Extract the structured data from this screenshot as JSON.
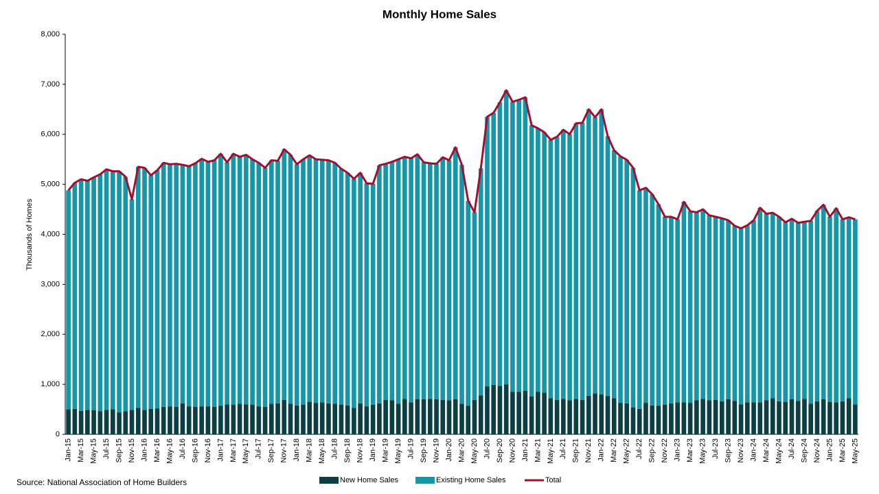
{
  "chart_data": {
    "type": "stacked_bar_line",
    "title": "Monthly Home Sales",
    "ylabel": "Thousands of Homes",
    "source": "Source: National Association of Home Builders",
    "categories": [
      "Jan-15",
      null,
      "Mar-15",
      null,
      "May-15",
      null,
      "Jul-15",
      null,
      "Sep-15",
      null,
      "Nov-15",
      null,
      "Jan-16",
      null,
      "Mar-16",
      null,
      "May-16",
      null,
      "Jul-16",
      null,
      "Sep-16",
      null,
      "Nov-16",
      null,
      "Jan-17",
      null,
      "Mar-17",
      null,
      "May-17",
      null,
      "Jul-17",
      null,
      "Sep-17",
      null,
      "Nov-17",
      null,
      "Jan-18",
      null,
      "Mar-18",
      null,
      "May-18",
      null,
      "Jul-18",
      null,
      "Sep-18",
      null,
      "Nov-18",
      null,
      "Jan-19",
      null,
      "Mar-19",
      null,
      "May-19",
      null,
      "Jul-19",
      null,
      "Sep-19",
      null,
      "Nov-19",
      null,
      "Jan-20",
      null,
      "Mar-20",
      null,
      "May-20",
      null,
      "Jul-20",
      null,
      "Sep-20",
      null,
      "Nov-20",
      null,
      "Jan-21",
      null,
      "Mar-21",
      null,
      "May-21",
      null,
      "Jul-21",
      null,
      "Sep-21",
      null,
      "Nov-21",
      null,
      "Jan-22",
      null,
      "Mar-22",
      null,
      "May-22",
      null,
      "Jul-22",
      null,
      "Sep-22",
      null,
      "Nov-22",
      null,
      "Jan-23",
      null,
      "Mar-23",
      null,
      "May-23",
      null,
      "Jul-23",
      null,
      "Sep-23",
      null,
      "Nov-23",
      null,
      "Jan-24",
      null,
      "Mar-24",
      null,
      "May-24",
      null,
      "Jul-24",
      null,
      "Sep-24",
      null,
      "Nov-24",
      null,
      "Jan-25",
      null,
      "Mar-25",
      null,
      "May-25"
    ],
    "series": [
      {
        "name": "New Home Sales",
        "color": "#0b3f44",
        "kind": "bar",
        "values": [
          500,
          510,
          470,
          490,
          480,
          460,
          490,
          500,
          440,
          460,
          490,
          530,
          490,
          510,
          520,
          550,
          560,
          550,
          620,
          560,
          550,
          560,
          560,
          550,
          570,
          600,
          590,
          610,
          600,
          590,
          560,
          550,
          610,
          620,
          690,
          610,
          580,
          590,
          650,
          630,
          640,
          620,
          610,
          590,
          580,
          530,
          620,
          560,
          590,
          620,
          690,
          680,
          610,
          710,
          640,
          700,
          700,
          710,
          700,
          690,
          680,
          700,
          610,
          570,
          690,
          780,
          960,
          990,
          970,
          1000,
          850,
          850,
          870,
          760,
          850,
          830,
          720,
          690,
          710,
          680,
          710,
          690,
          770,
          820,
          800,
          770,
          720,
          630,
          620,
          540,
          510,
          630,
          580,
          570,
          590,
          620,
          640,
          640,
          630,
          680,
          710,
          680,
          690,
          660,
          700,
          670,
          600,
          640,
          640,
          640,
          680,
          720,
          660,
          650,
          700,
          670,
          710,
          610,
          660,
          700,
          650,
          640,
          660,
          720,
          600
        ]
      },
      {
        "name": "Existing Home Sales",
        "color": "#1597a9",
        "kind": "bar",
        "values": [
          4380,
          4520,
          4630,
          4580,
          4660,
          4740,
          4810,
          4760,
          4820,
          4690,
          4210,
          4820,
          4840,
          4670,
          4760,
          4880,
          4840,
          4860,
          4770,
          4800,
          4870,
          4950,
          4890,
          4930,
          5040,
          4840,
          5020,
          4940,
          4990,
          4910,
          4870,
          4780,
          4870,
          4850,
          5010,
          4980,
          4820,
          4910,
          4930,
          4870,
          4850,
          4860,
          4820,
          4720,
          4650,
          4580,
          4610,
          4460,
          4420,
          4760,
          4720,
          4770,
          4890,
          4840,
          4880,
          4900,
          4740,
          4710,
          4710,
          4850,
          4800,
          5040,
          4780,
          4100,
          3750,
          4540,
          5390,
          5440,
          5670,
          5880,
          5800,
          5840,
          5870,
          5420,
          5270,
          5210,
          5170,
          5260,
          5380,
          5320,
          5510,
          5540,
          5730,
          5520,
          5700,
          5190,
          4960,
          4930,
          4870,
          4790,
          4370,
          4300,
          4220,
          4030,
          3760,
          3730,
          3660,
          4010,
          3830,
          3760,
          3790,
          3700,
          3660,
          3660,
          3580,
          3500,
          3520,
          3540,
          3640,
          3890,
          3730,
          3710,
          3690,
          3590,
          3610,
          3560,
          3540,
          3660,
          3810,
          3890,
          3700,
          3880,
          3640,
          3620,
          3700
        ]
      },
      {
        "name": "Total",
        "color": "#a50d2d",
        "kind": "line",
        "values": [
          4880,
          5030,
          5100,
          5070,
          5140,
          5200,
          5300,
          5260,
          5260,
          5150,
          4700,
          5350,
          5330,
          5180,
          5280,
          5430,
          5400,
          5410,
          5390,
          5360,
          5420,
          5510,
          5450,
          5480,
          5610,
          5440,
          5610,
          5550,
          5590,
          5500,
          5430,
          5330,
          5480,
          5470,
          5700,
          5590,
          5400,
          5500,
          5580,
          5500,
          5490,
          5480,
          5430,
          5310,
          5230,
          5110,
          5230,
          5020,
          5010,
          5380,
          5410,
          5450,
          5500,
          5550,
          5520,
          5600,
          5440,
          5420,
          5410,
          5540,
          5480,
          5740,
          5390,
          4670,
          4440,
          5320,
          6350,
          6430,
          6640,
          6880,
          6650,
          6690,
          6740,
          6180,
          6120,
          6040,
          5890,
          5950,
          6090,
          6000,
          6220,
          6230,
          6500,
          6340,
          6500,
          5960,
          5680,
          5560,
          5490,
          5330,
          4880,
          4930,
          4800,
          4600,
          4350,
          4350,
          4300,
          4650,
          4460,
          4440,
          4500,
          4380,
          4350,
          4320,
          4280,
          4170,
          4120,
          4180,
          4280,
          4530,
          4410,
          4430,
          4350,
          4240,
          4310,
          4230,
          4250,
          4270,
          4470,
          4590,
          4350,
          4520,
          4300,
          4340,
          4300
        ]
      }
    ],
    "ylim": [
      0,
      8000
    ],
    "yticks": [
      0,
      {
        "value": 1000,
        "label": "1,000"
      },
      {
        "value": 2000,
        "label": "2,000"
      },
      {
        "value": 3000,
        "label": "3,000"
      },
      {
        "value": 4000,
        "label": "4,000"
      },
      {
        "value": 5000,
        "label": "5,000"
      },
      {
        "value": 6000,
        "label": "6,000"
      },
      {
        "value": 7000,
        "label": "7,000"
      },
      {
        "value": 8000,
        "label": "8,000"
      }
    ],
    "grid": false,
    "legend": "bottom"
  }
}
